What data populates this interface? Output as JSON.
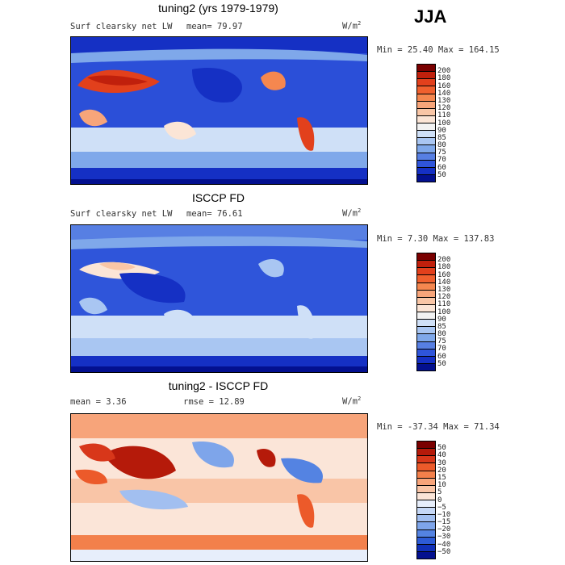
{
  "season": "JJA",
  "units_base": "W/m",
  "units_exp": "2",
  "panels": [
    {
      "id": "model",
      "title": "tuning2 (yrs 1979-1979)",
      "variable": "Surf clearsky net LW",
      "stat_left": "mean=   79.97",
      "stat_right": "",
      "minmax": "Min =  25.40 Max = 164.15",
      "palette": "abs"
    },
    {
      "id": "obs",
      "title": "ISCCP FD",
      "variable": "Surf clearsky net LW",
      "stat_left": "mean=   76.61",
      "stat_right": "",
      "minmax": "Min =   7.30 Max = 137.83",
      "palette": "abs"
    },
    {
      "id": "diff",
      "title": "tuning2 - ISCCP FD",
      "variable": "",
      "stat_left": "mean =    3.36",
      "stat_right": "rmse =   12.89",
      "minmax": "Min = -37.34 Max =  71.34",
      "palette": "diff"
    }
  ],
  "colorbars": {
    "abs": {
      "levels": [
        "200",
        "180",
        "160",
        "140",
        "130",
        "120",
        "110",
        "100",
        "90",
        "85",
        "80",
        "75",
        "70",
        "60",
        "50"
      ],
      "colors": [
        "#7a0000",
        "#c0200c",
        "#e2401c",
        "#f0602e",
        "#f5874f",
        "#f7a57a",
        "#f9c6a6",
        "#fbe5d6",
        "#f2f2f2",
        "#cfe0f7",
        "#a9c6f2",
        "#7fa8ea",
        "#577fe3",
        "#2f55da",
        "#1530c4",
        "#03108f"
      ]
    },
    "diff": {
      "levels": [
        "50",
        "40",
        "30",
        "20",
        "15",
        "10",
        "5",
        "0",
        "−5",
        "−10",
        "−15",
        "−20",
        "−30",
        "−40",
        "−50"
      ],
      "colors": [
        "#7a0000",
        "#b51a0a",
        "#d8371a",
        "#ec5a2a",
        "#f3804b",
        "#f7a47a",
        "#f9c5a7",
        "#fbe5d8",
        "#e7eefb",
        "#c6d8f6",
        "#a2bff0",
        "#7ea5ea",
        "#5483e2",
        "#2d5bd6",
        "#1030b8",
        "#03108f"
      ]
    }
  },
  "chart_data": [
    {
      "type": "heatmap",
      "title": "tuning2 (yrs 1979-1979)",
      "subtitle": "Surf clearsky net LW",
      "season": "JJA",
      "units": "W/m^2",
      "mean": 79.97,
      "min": 25.4,
      "max": 164.15,
      "contour_levels": [
        50,
        60,
        70,
        75,
        80,
        85,
        90,
        100,
        110,
        120,
        130,
        140,
        160,
        180,
        200
      ]
    },
    {
      "type": "heatmap",
      "title": "ISCCP FD",
      "subtitle": "Surf clearsky net LW",
      "season": "JJA",
      "units": "W/m^2",
      "mean": 76.61,
      "min": 7.3,
      "max": 137.83,
      "contour_levels": [
        50,
        60,
        70,
        75,
        80,
        85,
        90,
        100,
        110,
        120,
        130,
        140,
        160,
        180,
        200
      ]
    },
    {
      "type": "heatmap",
      "title": "tuning2 - ISCCP FD",
      "season": "JJA",
      "units": "W/m^2",
      "mean": 3.36,
      "rmse": 12.89,
      "min": -37.34,
      "max": 71.34,
      "contour_levels": [
        -50,
        -40,
        -30,
        -20,
        -15,
        -10,
        -5,
        0,
        5,
        10,
        15,
        20,
        30,
        40,
        50
      ]
    }
  ]
}
